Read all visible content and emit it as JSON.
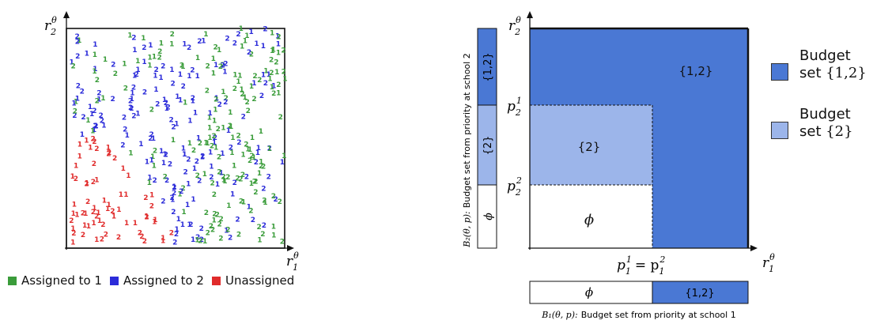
{
  "colors": {
    "assigned1": "#3a9c3a",
    "assigned2": "#2b2bd9",
    "unassigned": "#e02b2b",
    "set12": "#4a78d4",
    "set2": "#9cb5ea"
  },
  "left_panel": {
    "y_axis_label": "r",
    "y_axis_sub": "2",
    "y_axis_sup": "θ",
    "x_axis_label": "r",
    "x_axis_sub": "1",
    "x_axis_sup": "θ",
    "point_label_school1": "1",
    "point_label_school2": "2"
  },
  "legend_left": [
    {
      "label": "Assigned to 1",
      "color_key": "assigned1"
    },
    {
      "label": "Assigned to 2",
      "color_key": "assigned2"
    },
    {
      "label": "Unassigned",
      "color_key": "unassigned"
    }
  ],
  "right_panel": {
    "y_axis_label": "r",
    "y_axis_sub": "2",
    "y_axis_sup": "θ",
    "x_axis_label": "r",
    "x_axis_sub": "1",
    "x_axis_sup": "θ",
    "region_12_label": "{1,2}",
    "region_2_label": "{2}",
    "region_empty_label": "ϕ",
    "tick_p21": "p",
    "tick_p21_sub": "2",
    "tick_p21_sup": "1",
    "tick_p22": "p",
    "tick_p22_sub": "2",
    "tick_p22_sup": "2",
    "tick_x": "p",
    "tick_x_eq": "= p",
    "tick_x_sub1": "1",
    "tick_x_sup1": "1",
    "tick_x_sub2": "1",
    "tick_x_sup2": "2",
    "side_bar_labels": [
      "{1,2}",
      "{2}",
      "ϕ"
    ],
    "bottom_bar_labels": [
      "ϕ",
      "{1,2}"
    ],
    "side_caption_math": "B₂(θ, p):",
    "side_caption_text": "Budget set from priority at school 2",
    "bottom_caption_math": "B₁(θ, p):",
    "bottom_caption_text": "Budget set from priority at school 1"
  },
  "legend_right": [
    {
      "line1": "Budget",
      "line2_prefix": "set ",
      "line2_set": "{1,2}",
      "color_key": "set12"
    },
    {
      "line1": "Budget",
      "line2_prefix": "set ",
      "line2_set": "{2}",
      "color_key": "set2"
    }
  ]
}
